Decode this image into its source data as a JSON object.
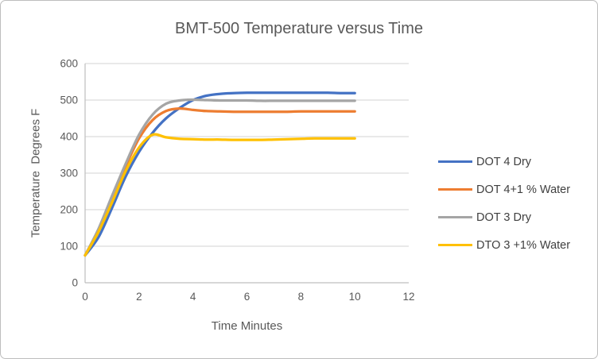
{
  "chart_data": {
    "type": "line",
    "title": "BMT-500 Temperature versus Time",
    "xlabel": "Time Minutes",
    "ylabel": "Temperature  Degrees F",
    "xlim": [
      0,
      12
    ],
    "ylim": [
      0,
      600
    ],
    "x_ticks": [
      0,
      2,
      4,
      6,
      8,
      10,
      12
    ],
    "y_ticks": [
      0,
      100,
      200,
      300,
      400,
      500,
      600
    ],
    "grid": "horizontal",
    "legend_position": "right",
    "x": [
      0,
      0.5,
      1,
      1.5,
      2,
      2.5,
      3,
      3.5,
      4,
      4.5,
      5,
      5.5,
      6,
      6.5,
      7,
      7.5,
      8,
      8.5,
      9,
      9.5,
      10
    ],
    "series": [
      {
        "name": "DOT 4 Dry",
        "color": "#4472C4",
        "values": [
          75,
          125,
          205,
          290,
          358,
          410,
          450,
          478,
          500,
          512,
          517,
          519,
          520,
          520,
          520,
          520,
          520,
          520,
          520,
          519,
          519
        ]
      },
      {
        "name": "DOT 4+1 % Water",
        "color": "#ED7D31",
        "values": [
          75,
          145,
          230,
          318,
          395,
          445,
          470,
          477,
          473,
          470,
          469,
          468,
          468,
          468,
          468,
          468,
          469,
          469,
          469,
          469,
          469
        ]
      },
      {
        "name": "DOT 3 Dry",
        "color": "#A5A5A5",
        "values": [
          75,
          148,
          238,
          325,
          405,
          460,
          490,
          499,
          501,
          500,
          499,
          499,
          499,
          498,
          498,
          498,
          498,
          498,
          498,
          498,
          498
        ]
      },
      {
        "name": "DTO 3 +1% Water",
        "color": "#FFC000",
        "values": [
          75,
          140,
          220,
          305,
          370,
          405,
          398,
          394,
          393,
          392,
          392,
          391,
          391,
          391,
          392,
          393,
          394,
          395,
          395,
          395,
          395
        ]
      }
    ],
    "style": {
      "gridline_color": "#DCDCDC",
      "axis_color": "#BFBFBF",
      "text_color": "#595959",
      "legend_text_color": "#404040",
      "line_width": 3.25
    }
  }
}
